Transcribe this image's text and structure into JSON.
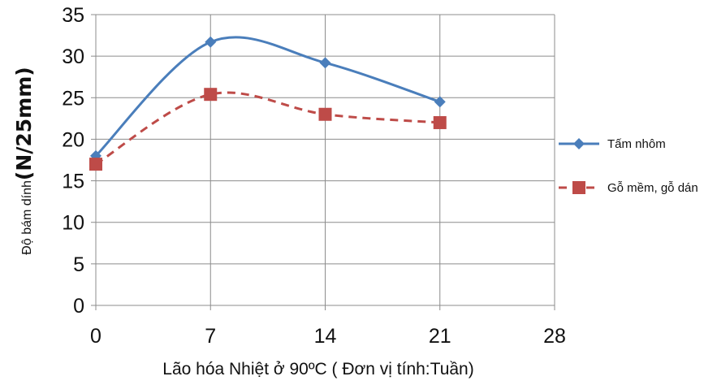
{
  "chart_data": {
    "type": "line",
    "title": "",
    "xlabel": "Lão hóa Nhiệt ở 90ºC ( Đơn vị tính:Tuần)",
    "ylabel_prefix": "Độ bám dính",
    "ylabel_unit": "(N/25mm)",
    "xlim": [
      0,
      28
    ],
    "ylim": [
      0,
      35
    ],
    "x_ticks": [
      "0",
      "7",
      "14",
      "21",
      "28"
    ],
    "y_ticks": [
      "0",
      "5",
      "10",
      "15",
      "20",
      "25",
      "30",
      "35"
    ],
    "x": [
      0,
      7,
      14,
      21
    ],
    "grid": true,
    "legend_position": "right",
    "series": [
      {
        "name": "Tấm nhôm",
        "values": [
          18,
          31.7,
          29.2,
          24.5
        ],
        "color": "#4a7ebb",
        "marker": "diamond",
        "line_style": "solid"
      },
      {
        "name": "Gỗ mềm, gỗ dán",
        "values": [
          17,
          25.4,
          23,
          22
        ],
        "color": "#be4b48",
        "marker": "square",
        "line_style": "dashed"
      }
    ]
  }
}
